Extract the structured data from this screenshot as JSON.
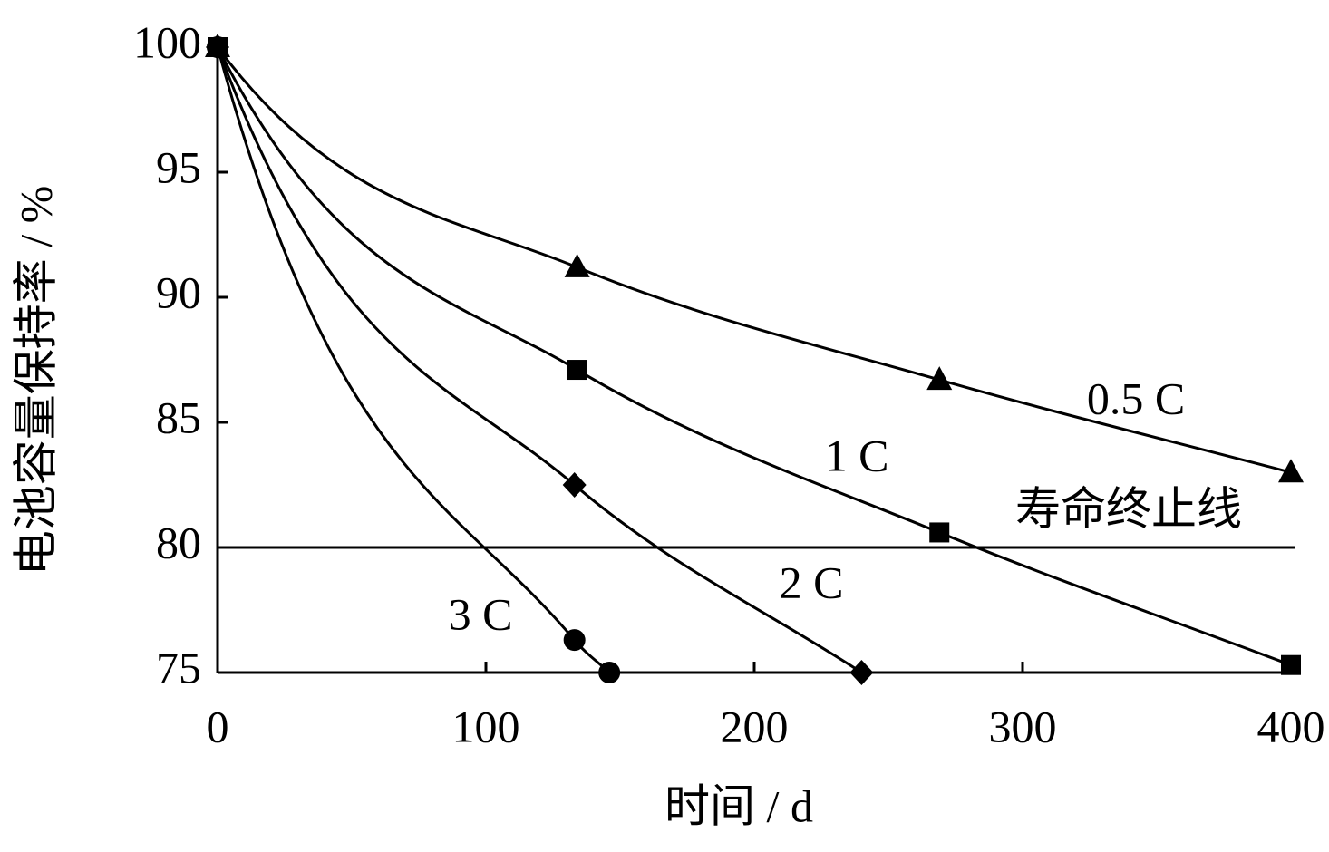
{
  "chart_data": {
    "type": "line",
    "x_label": "时间 / d",
    "y_label": "电池容量保持率 / %",
    "xlim": [
      0,
      400
    ],
    "xticks": [
      0,
      100,
      200,
      300,
      400
    ],
    "ylim": [
      75,
      100
    ],
    "yticks": [
      75,
      80,
      85,
      90,
      95,
      100
    ],
    "reference_line": {
      "value": 80,
      "label": "寿命终止线"
    },
    "series": [
      {
        "name": "0.5 C",
        "color": "#000000",
        "marker": "triangle",
        "x": [
          0,
          134,
          269,
          400
        ],
        "values": [
          100,
          91.2,
          86.7,
          83.0
        ]
      },
      {
        "name": "1 C",
        "color": "#000000",
        "marker": "square",
        "x": [
          0,
          134,
          269,
          400
        ],
        "values": [
          100,
          87.1,
          80.6,
          75.3
        ]
      },
      {
        "name": "2 C",
        "color": "#000000",
        "marker": "diamond",
        "x": [
          0,
          133,
          240
        ],
        "values": [
          100,
          82.5,
          75.0
        ]
      },
      {
        "name": "3 C",
        "color": "#000000",
        "marker": "circle",
        "x": [
          0,
          133,
          146
        ],
        "values": [
          100,
          76.3,
          75.0
        ]
      }
    ]
  }
}
